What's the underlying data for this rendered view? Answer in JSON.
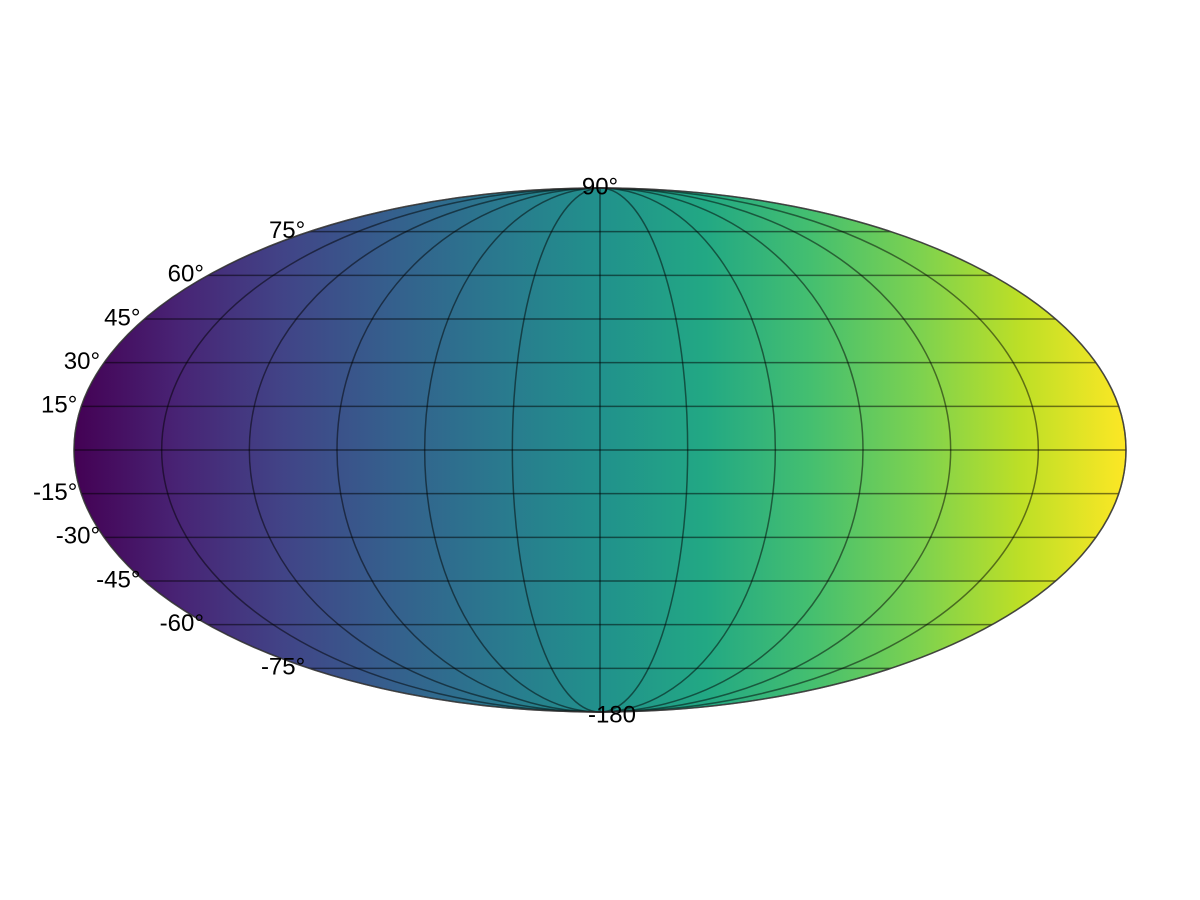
{
  "chart_data": {
    "type": "heatmap",
    "projection": "Mollweide (ellipse)",
    "colormap": "viridis",
    "color_range": [
      "#440154",
      "#fde725"
    ],
    "color_varies_with": "longitude",
    "grid": true,
    "latitude_labels": [
      "90°",
      "75°",
      "60°",
      "45°",
      "30°",
      "15°",
      "-15°",
      "-30°",
      "-45°",
      "-60°",
      "-75°",
      "-180"
    ],
    "parallels_deg": [
      -75,
      -60,
      -45,
      -30,
      -15,
      0,
      15,
      30,
      45,
      60,
      75
    ],
    "meridians_deg": [
      -180,
      -150,
      -120,
      -90,
      -60,
      -30,
      0,
      30,
      60,
      90,
      120,
      150,
      180
    ],
    "lon_range": [
      -180,
      180
    ],
    "lat_range": [
      -90,
      90
    ]
  }
}
